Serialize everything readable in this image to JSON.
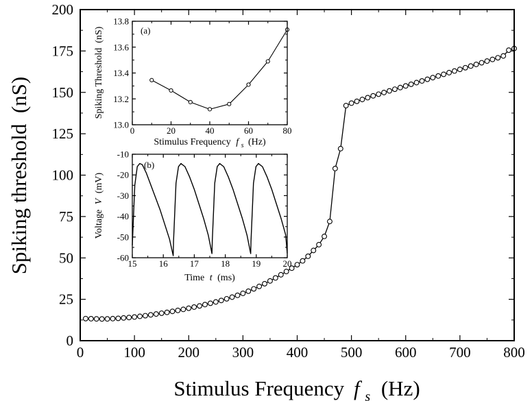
{
  "chart_data": [
    {
      "id": "main",
      "type": "scatter",
      "xlabel": "Stimulus Frequency",
      "xlabel_symbol": "f",
      "xlabel_sub": "s",
      "xlabel_unit": "(Hz)",
      "ylabel": "Spiking threshold  (nS)",
      "xlim": [
        0,
        800
      ],
      "ylim": [
        0,
        200
      ],
      "xticks": [
        0,
        100,
        200,
        300,
        400,
        500,
        600,
        700,
        800
      ],
      "yticks": [
        0,
        25,
        50,
        75,
        100,
        125,
        150,
        175,
        200
      ],
      "marker": "open-circle",
      "line": "solid",
      "grid": false,
      "series": [
        {
          "x": [
            10,
            20,
            30,
            40,
            50,
            60,
            70,
            80,
            90,
            100,
            110,
            120,
            130,
            140,
            150,
            160,
            170,
            180,
            190,
            200,
            210,
            220,
            230,
            240,
            250,
            260,
            270,
            280,
            290,
            300,
            310,
            320,
            330,
            340,
            350,
            360,
            370,
            380,
            390,
            400,
            410,
            420,
            430,
            440,
            450,
            460,
            470,
            480,
            490,
            500,
            510,
            520,
            530,
            540,
            550,
            560,
            570,
            580,
            590,
            600,
            610,
            620,
            630,
            640,
            650,
            660,
            670,
            680,
            690,
            700,
            710,
            720,
            730,
            740,
            750,
            760,
            770,
            780,
            790,
            800
          ],
          "y": [
            13.34,
            13.26,
            13.17,
            13.12,
            13.16,
            13.31,
            13.49,
            13.74,
            14.0,
            14.3,
            14.7,
            15.1,
            15.6,
            16.1,
            16.6,
            17.1,
            17.7,
            18.3,
            18.9,
            19.6,
            20.3,
            21.0,
            21.8,
            22.6,
            23.4,
            24.3,
            25.3,
            26.3,
            27.4,
            28.6,
            29.9,
            31.3,
            32.8,
            34.4,
            36.1,
            37.9,
            39.8,
            41.8,
            43.8,
            45.9,
            48.2,
            51.0,
            54.5,
            58.0,
            63.0,
            72.0,
            104.0,
            116.0,
            142.0,
            143.5,
            144.6,
            145.7,
            146.8,
            147.9,
            148.9,
            149.9,
            150.9,
            151.9,
            152.9,
            153.9,
            154.9,
            155.9,
            156.9,
            157.9,
            158.9,
            159.9,
            160.9,
            161.9,
            162.9,
            163.9,
            164.9,
            165.9,
            166.9,
            167.9,
            168.9,
            169.9,
            170.9,
            172.0,
            175.5,
            176.5
          ]
        }
      ]
    },
    {
      "id": "inset-a",
      "type": "line",
      "panel": "(a)",
      "xlabel": "Stimulus Frequency",
      "xlabel_symbol": "f",
      "xlabel_sub": "s",
      "xlabel_unit": "(Hz)",
      "ylabel": "Spiking Threshold  (nS)",
      "xlim": [
        0,
        80
      ],
      "ylim": [
        13.0,
        13.8
      ],
      "xticks": [
        0,
        20,
        40,
        60,
        80
      ],
      "yticks": [
        13.0,
        13.2,
        13.4,
        13.6,
        13.8
      ],
      "ytick_labels": [
        "13.0",
        "13.2",
        "13.4",
        "13.6",
        "13.8"
      ],
      "marker": "open-circle",
      "series": [
        {
          "x": [
            10,
            20,
            30,
            40,
            50,
            60,
            70,
            80
          ],
          "y": [
            13.345,
            13.265,
            13.175,
            13.12,
            13.16,
            13.31,
            13.49,
            13.735
          ]
        }
      ]
    },
    {
      "id": "inset-b",
      "type": "line",
      "panel": "(b)",
      "xlabel": "Time",
      "xlabel_symbol": "t",
      "xlabel_unit": "(ms)",
      "ylabel": "Voltage",
      "ylabel_symbol": "V",
      "ylabel_unit": "(mV)",
      "xlim": [
        15,
        20
      ],
      "ylim": [
        -60,
        -10
      ],
      "xticks": [
        15,
        16,
        17,
        18,
        19,
        20
      ],
      "yticks": [
        -60,
        -50,
        -40,
        -30,
        -20,
        -10
      ],
      "series": [
        {
          "x": [
            15.0,
            15.08,
            15.16,
            15.24,
            15.32,
            15.45,
            15.6,
            15.75,
            15.9,
            16.05,
            16.2,
            16.32,
            16.33,
            16.41,
            16.49,
            16.57,
            16.7,
            16.85,
            17.0,
            17.15,
            17.3,
            17.45,
            17.57,
            17.58,
            17.66,
            17.74,
            17.82,
            17.95,
            18.1,
            18.25,
            18.4,
            18.55,
            18.7,
            18.82,
            18.83,
            18.91,
            18.99,
            19.07,
            19.2,
            19.35,
            19.5,
            19.65,
            19.8,
            19.95,
            20.0
          ],
          "y": [
            -54,
            -25,
            -16,
            -14.5,
            -15,
            -19,
            -25,
            -31,
            -37,
            -44,
            -51,
            -59,
            -52,
            -24,
            -16,
            -14.5,
            -16,
            -21,
            -27,
            -34,
            -41,
            -49,
            -58,
            -52,
            -24,
            -16,
            -14.5,
            -16,
            -21,
            -27,
            -34,
            -41,
            -49,
            -58,
            -52,
            -24,
            -16,
            -14.5,
            -16,
            -21,
            -27,
            -34,
            -41,
            -49,
            -58
          ]
        }
      ]
    }
  ]
}
